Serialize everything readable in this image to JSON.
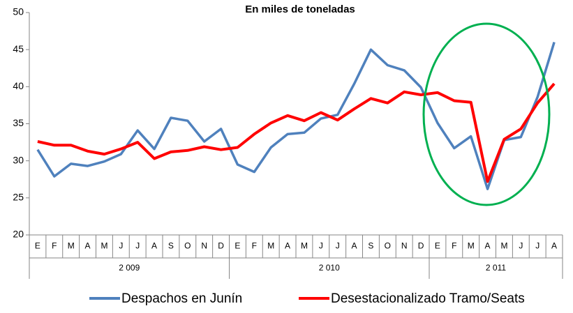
{
  "chart_data": {
    "type": "line",
    "title": "En miles de toneladas",
    "groups": [
      {
        "label": "2 009",
        "categories": [
          "E",
          "F",
          "M",
          "A",
          "M",
          "J",
          "J",
          "A",
          "S",
          "O",
          "N",
          "D"
        ]
      },
      {
        "label": "2 010",
        "categories": [
          "E",
          "F",
          "M",
          "A",
          "M",
          "J",
          "J",
          "A",
          "S",
          "O",
          "N",
          "D"
        ]
      },
      {
        "label": "2 011",
        "categories": [
          "E",
          "F",
          "M",
          "A",
          "M",
          "J",
          "J",
          "A"
        ]
      }
    ],
    "series": [
      {
        "name": "Despachos en Junín",
        "color": "#4f81bd",
        "values": [
          31.5,
          27.9,
          29.6,
          29.3,
          29.9,
          30.9,
          34.1,
          31.6,
          35.8,
          35.4,
          32.6,
          34.3,
          29.5,
          28.5,
          31.8,
          33.6,
          33.8,
          35.7,
          36.2,
          40.4,
          45.0,
          42.9,
          42.2,
          39.9,
          35.1,
          31.7,
          33.3,
          26.2,
          32.8,
          33.2,
          38.6,
          46.0
        ]
      },
      {
        "name": "Desestacionalizado Tramo/Seats",
        "color": "#ff0000",
        "values": [
          32.6,
          32.1,
          32.1,
          31.3,
          30.9,
          31.6,
          32.5,
          30.3,
          31.2,
          31.4,
          31.9,
          31.5,
          31.8,
          33.6,
          35.1,
          36.1,
          35.4,
          36.5,
          35.5,
          37.0,
          38.4,
          37.8,
          39.3,
          38.9,
          39.2,
          38.1,
          37.9,
          27.2,
          32.9,
          34.3,
          37.8,
          40.4
        ]
      }
    ],
    "ylim": [
      20,
      50
    ],
    "yticks": [
      20,
      25,
      30,
      35,
      40,
      45,
      50
    ],
    "grid": false,
    "legend": "bottom"
  }
}
